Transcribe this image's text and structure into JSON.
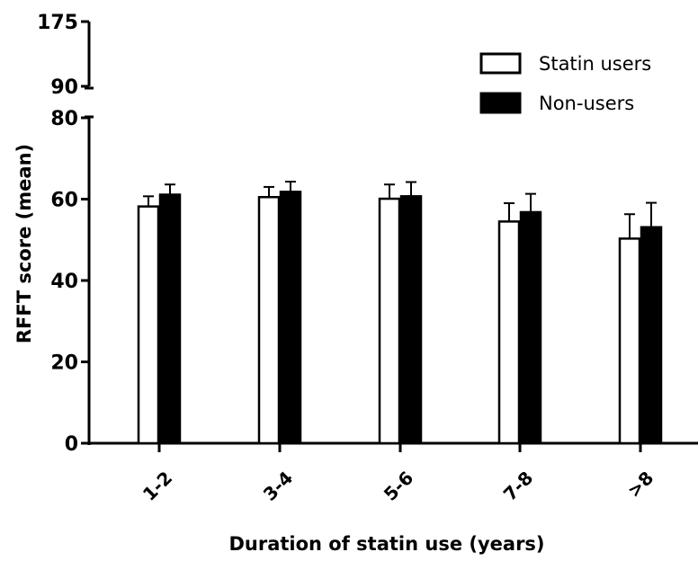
{
  "chart_data": {
    "type": "bar",
    "xlabel": "Duration of statin use (years)",
    "ylabel": "RFFT score (mean)",
    "categories": [
      "1-2",
      "3-4",
      "5-6",
      "7-8",
      ">8"
    ],
    "series": [
      {
        "name": "Statin users",
        "color": "#ffffff",
        "values": [
          58.2,
          60.5,
          60.1,
          54.5,
          50.3
        ],
        "error": [
          2.5,
          2.5,
          3.5,
          4.5,
          6.0
        ]
      },
      {
        "name": "Non-users",
        "color": "#000000",
        "values": [
          61.1,
          61.8,
          60.7,
          56.8,
          53.1
        ],
        "error": [
          2.5,
          2.5,
          3.5,
          4.5,
          6.0
        ]
      }
    ],
    "ylim": [
      0,
      175
    ],
    "y_break": [
      80,
      90
    ],
    "yticks_lower": [
      0,
      20,
      40,
      60,
      80
    ],
    "yticks_upper": [
      90,
      175
    ],
    "legend_position": "top-right"
  }
}
